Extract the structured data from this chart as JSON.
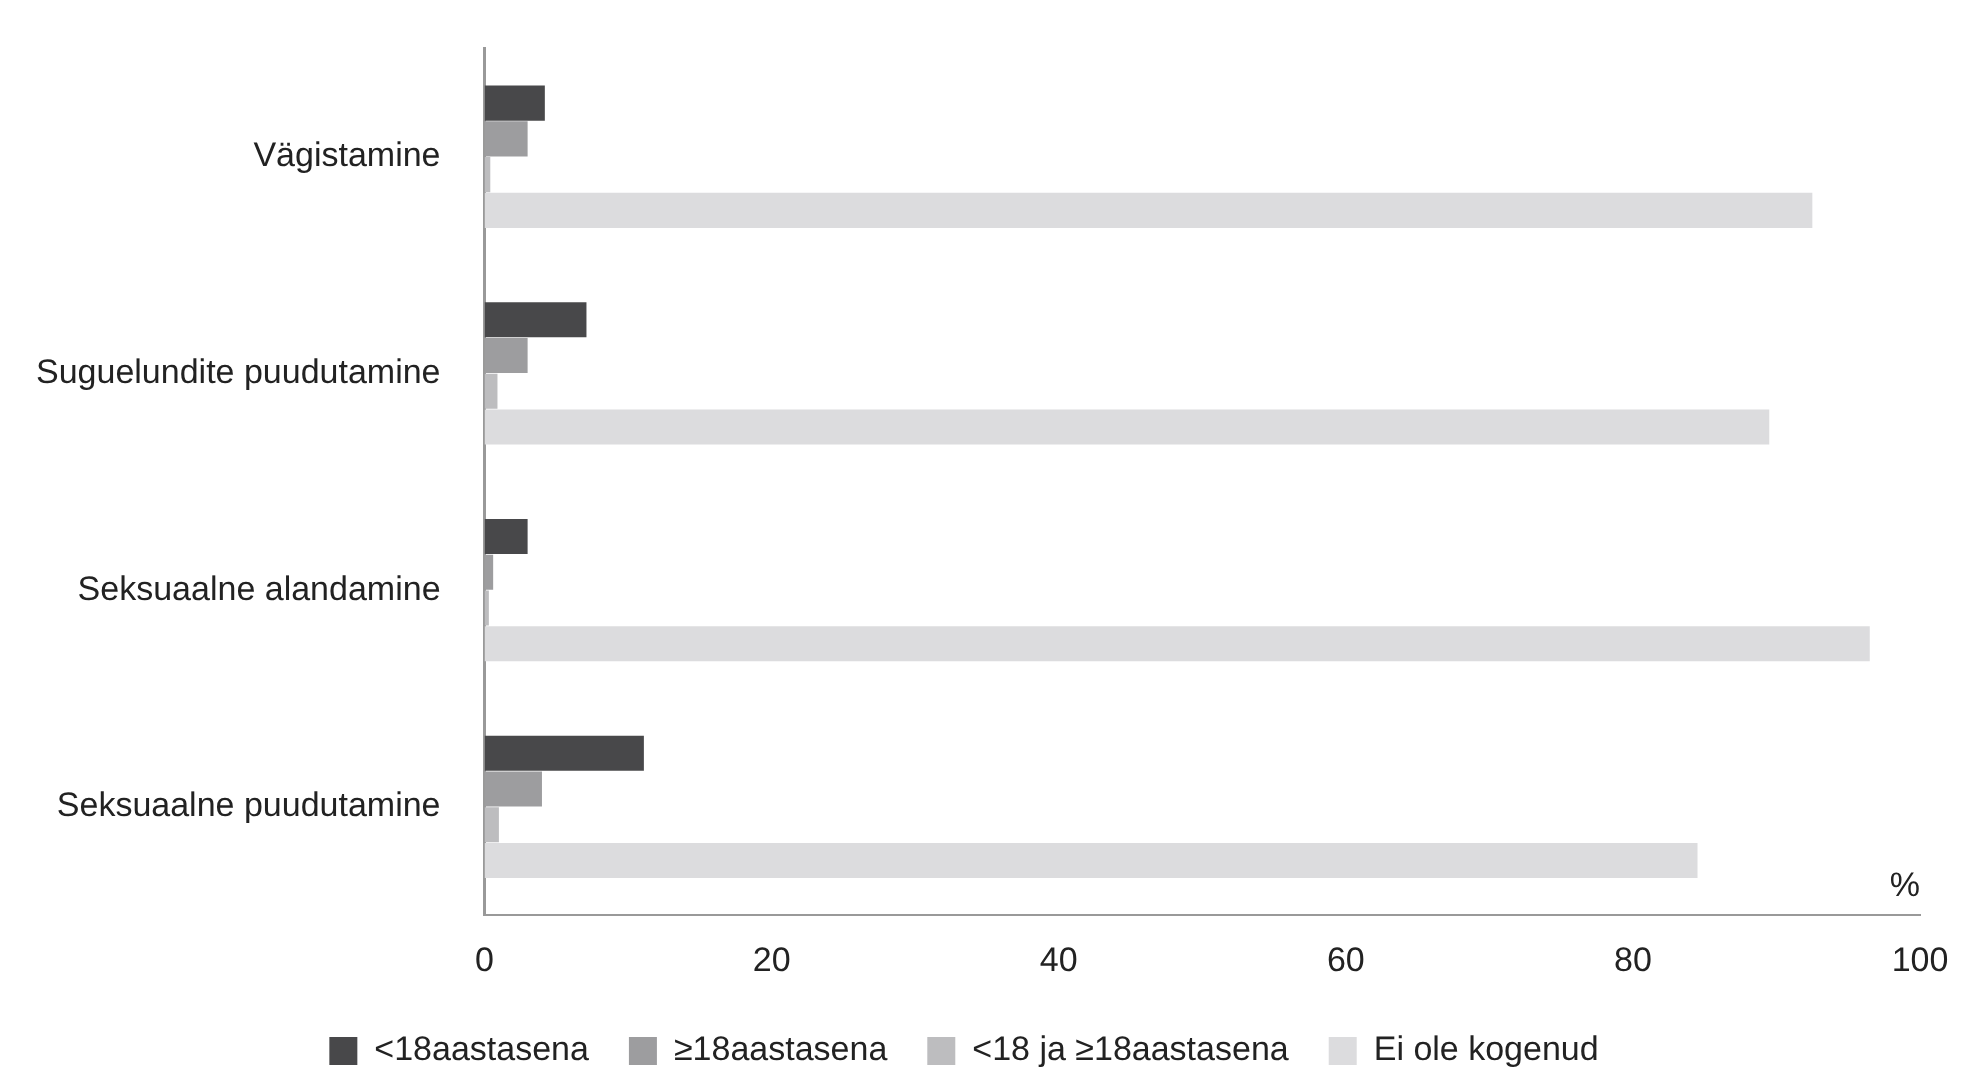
{
  "chart_data": {
    "type": "bar",
    "orientation": "horizontal",
    "categories": [
      "Vägistamine",
      "Suguelundite puudutamine",
      "Seksuaalne alandamine",
      "Seksuaalne puudutamine"
    ],
    "series": [
      {
        "name": "<18aastasena",
        "color": "#48484a",
        "values": [
          4.2,
          7.1,
          3.0,
          11.1
        ]
      },
      {
        "name": "≥18aastasena",
        "color": "#9d9d9f",
        "values": [
          3.0,
          3.0,
          0.6,
          4.0
        ]
      },
      {
        "name": "<18 ja ≥18aastasena",
        "color": "#bdbdbf",
        "values": [
          0.4,
          0.9,
          0.3,
          1.0
        ]
      },
      {
        "name": "Ei ole kogenud",
        "color": "#dcdcde",
        "values": [
          92.5,
          89.5,
          96.5,
          84.5
        ]
      }
    ],
    "xlim": [
      0,
      100
    ],
    "xticks": [
      0,
      20,
      40,
      60,
      80,
      100
    ],
    "grid": false,
    "legend": "bottom",
    "annotations": [
      "%"
    ]
  }
}
